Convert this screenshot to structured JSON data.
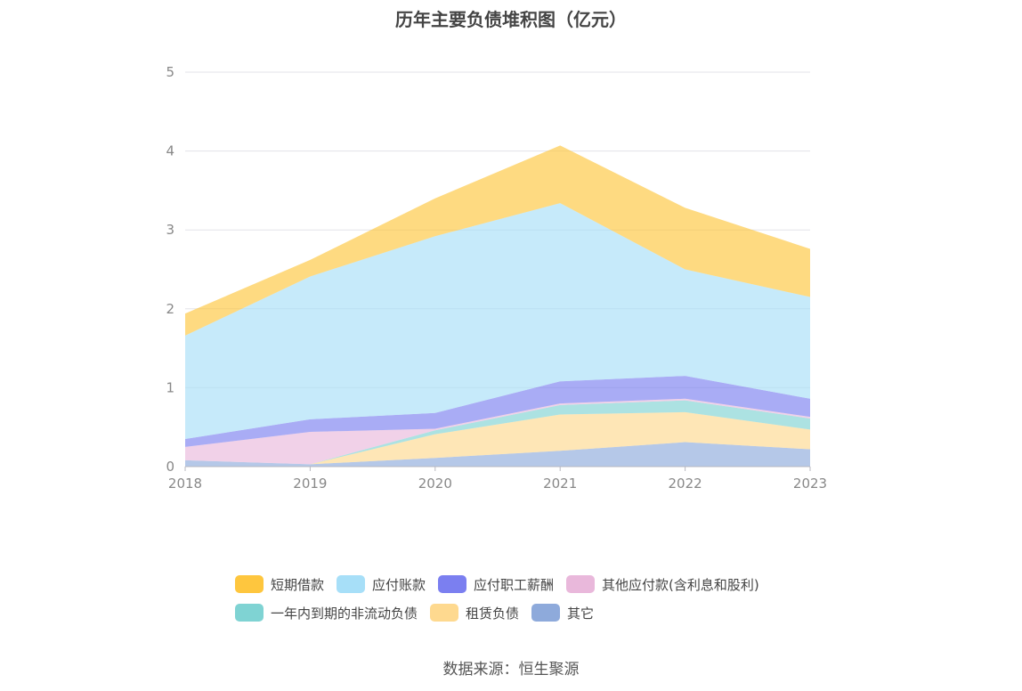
{
  "chart_data": {
    "type": "area",
    "stacked": true,
    "title": "历年主要负债堆积图（亿元）",
    "categories": [
      "2018",
      "2019",
      "2020",
      "2021",
      "2022",
      "2023"
    ],
    "ylim": [
      0,
      5
    ],
    "yticks": [
      "0",
      "1",
      "2",
      "3",
      "4",
      "5"
    ],
    "grid": true,
    "legend_position": "bottom",
    "series": [
      {
        "name": "其它",
        "color": "#8eaadb",
        "values": [
          0.08,
          0.03,
          0.11,
          0.2,
          0.31,
          0.22
        ]
      },
      {
        "name": "租赁负债",
        "color": "#fed98f",
        "values": [
          0.0,
          0.0,
          0.3,
          0.46,
          0.38,
          0.25
        ]
      },
      {
        "name": "一年内到期的非流动负债",
        "color": "#7fd3d3",
        "values": [
          0.0,
          0.0,
          0.05,
          0.12,
          0.15,
          0.14
        ]
      },
      {
        "name": "其他应付款(含利息和股利)",
        "color": "#e9b8db",
        "values": [
          0.17,
          0.41,
          0.02,
          0.02,
          0.02,
          0.02
        ]
      },
      {
        "name": "应付职工薪酬",
        "color": "#7b7ff0",
        "values": [
          0.1,
          0.16,
          0.2,
          0.28,
          0.29,
          0.23
        ]
      },
      {
        "name": "应付账款",
        "color": "#a7dff8",
        "values": [
          1.31,
          1.81,
          2.24,
          2.26,
          1.35,
          1.29
        ]
      },
      {
        "name": "短期借款",
        "color": "#fec63e",
        "values": [
          0.28,
          0.21,
          0.48,
          0.73,
          0.78,
          0.61
        ]
      }
    ]
  },
  "legend": {
    "row1": [
      {
        "label": "短期借款",
        "color": "#fec63e"
      },
      {
        "label": "应付账款",
        "color": "#a7dff8"
      },
      {
        "label": "应付职工薪酬",
        "color": "#7b7ff0"
      },
      {
        "label": "其他应付款(含利息和股利)",
        "color": "#e9b8db"
      }
    ],
    "row2": [
      {
        "label": "一年内到期的非流动负债",
        "color": "#7fd3d3"
      },
      {
        "label": "租赁负债",
        "color": "#fed98f"
      },
      {
        "label": "其它",
        "color": "#8eaadb"
      }
    ]
  },
  "source": "数据来源：恒生聚源"
}
